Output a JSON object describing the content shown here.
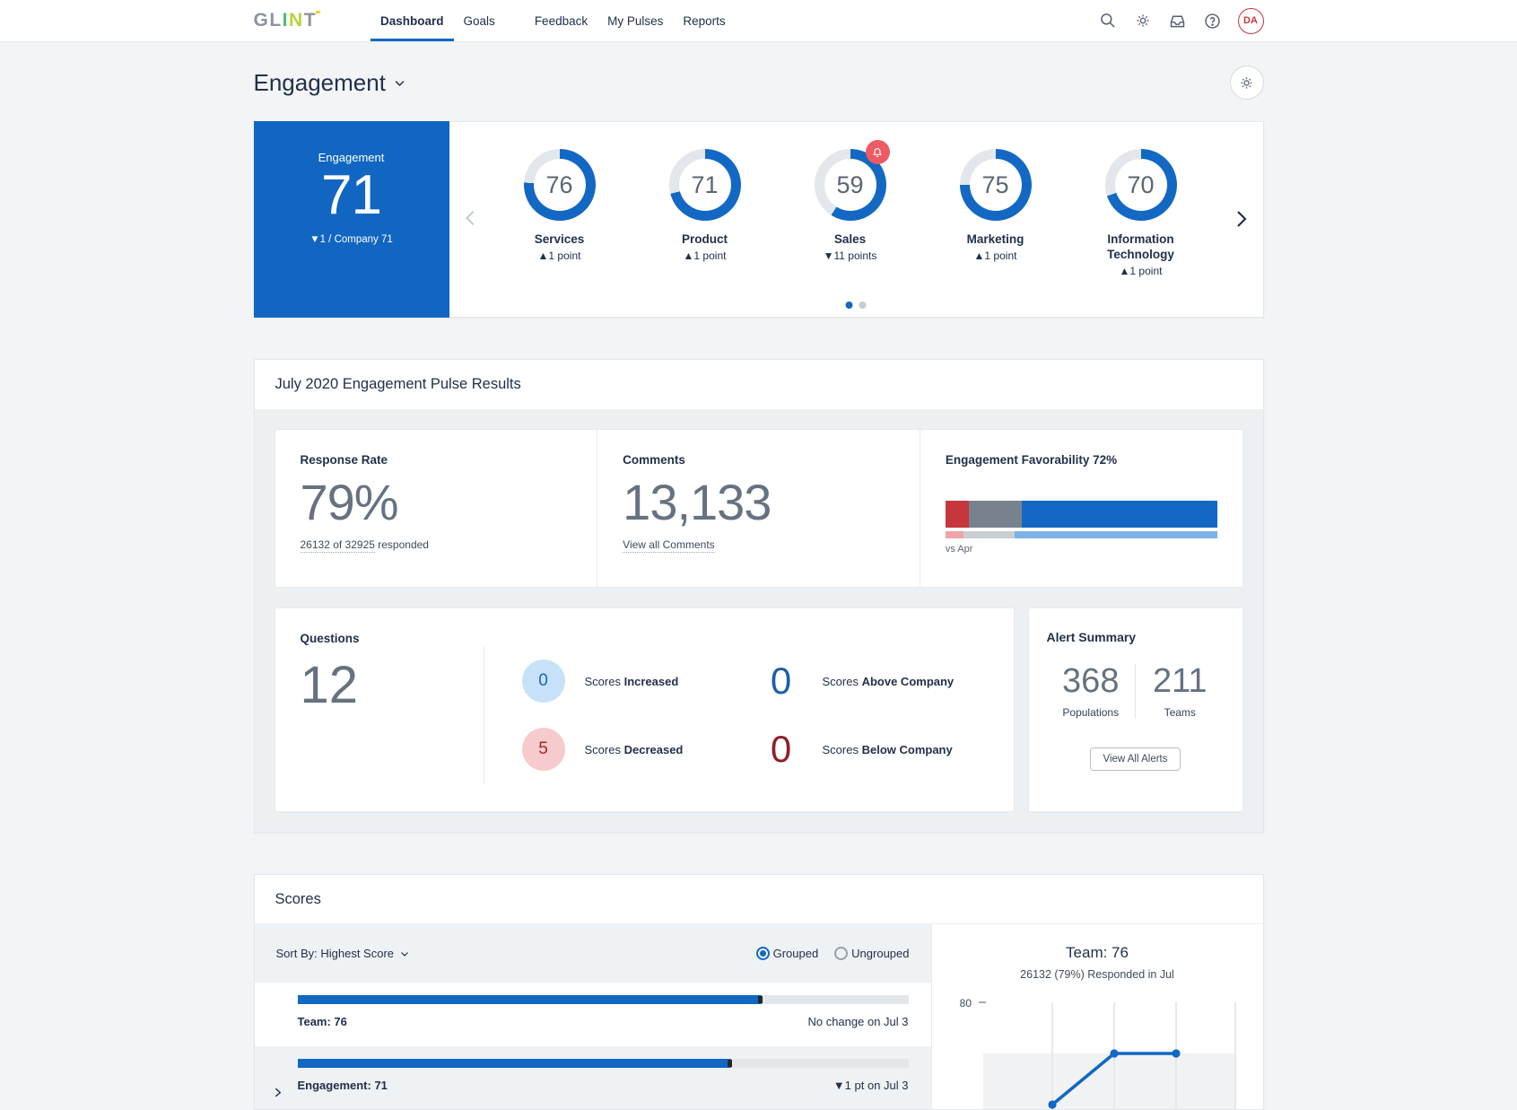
{
  "colors": {
    "primary": "#1268C3",
    "track": "#E3E7EB"
  },
  "nav": {
    "logo": {
      "g": "G",
      "l": "L",
      "i": "I",
      "n": "N",
      "t": "T"
    },
    "items": [
      {
        "label": "Dashboard",
        "active": true
      },
      {
        "label": "Goals",
        "active": false
      },
      {
        "label": "Feedback",
        "active": false
      },
      {
        "label": "My Pulses",
        "active": false
      },
      {
        "label": "Reports",
        "active": false
      }
    ],
    "avatar": "DA"
  },
  "header": {
    "title": "Engagement"
  },
  "carousel": {
    "primary": {
      "label": "Engagement",
      "score": "71",
      "delta": "▼1 / Company 71"
    },
    "items": [
      {
        "name": "Services",
        "score": 76,
        "delta": "▲1 point"
      },
      {
        "name": "Product",
        "score": 71,
        "delta": "▲1 point"
      },
      {
        "name": "Sales",
        "score": 59,
        "delta": "▼11 points"
      },
      {
        "name": "Marketing",
        "score": 75,
        "delta": "▲1 point"
      },
      {
        "name": "Information Technology",
        "score": 70,
        "delta": "▲1 point"
      }
    ]
  },
  "pulse": {
    "title": "July 2020 Engagement Pulse Results",
    "response_rate": {
      "label": "Response Rate",
      "value": "79%",
      "link": "26132 of 32925",
      "rest": " responded"
    },
    "comments": {
      "label": "Comments",
      "value": "13,133",
      "link": "View all Comments"
    },
    "favorability": {
      "label": "Engagement Favorability 72%",
      "caption": "vs Apr",
      "current": {
        "red": 8.5,
        "gray": 19.5,
        "blue": 72
      },
      "previous": {
        "red": 6.5,
        "gray": 19,
        "blue": 74.5
      }
    },
    "questions": {
      "label": "Questions",
      "value": "12"
    },
    "stats": [
      {
        "value": "0",
        "label": "Scores",
        "label_bold": "Increased"
      },
      {
        "value": "5",
        "label": "Scores",
        "label_bold": "Decreased"
      },
      {
        "value": "0",
        "label": "Scores",
        "label_bold": "Above Company"
      },
      {
        "value": "0",
        "label": "Scores",
        "label_bold": "Below Company"
      }
    ],
    "alerts": {
      "title": "Alert Summary",
      "populations_value": "368",
      "populations_label": "Populations",
      "teams_value": "211",
      "teams_label": "Teams",
      "button": "View All Alerts"
    }
  },
  "scores": {
    "title": "Scores",
    "sort_label": "Sort By: Highest Score",
    "grouped_label": "Grouped",
    "ungrouped_label": "Ungrouped",
    "rows": [
      {
        "label": "Team: 76",
        "value": 76,
        "note": "No change on Jul 3"
      },
      {
        "label": "Engagement: 71",
        "value": 71,
        "note": "▼1 pt on Jul 3"
      }
    ],
    "chart": {
      "type": "line",
      "title": "Team: 76",
      "subtitle": "26132 (79%) Responded in Jul",
      "y_top_label": "80",
      "ylim_top": 80,
      "points": [
        72,
        76,
        76
      ]
    }
  }
}
